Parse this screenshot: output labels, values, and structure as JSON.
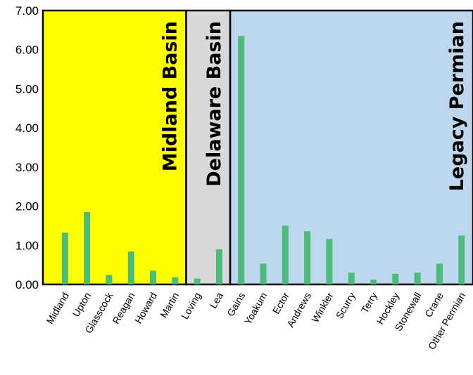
{
  "chart_data": {
    "type": "bar",
    "title": "",
    "xlabel": "",
    "ylabel": "",
    "ylim": [
      0,
      7
    ],
    "yticks": [
      "0.00",
      "1.00",
      "2.00",
      "3.00",
      "4.00",
      "5.00",
      "6.00",
      "7.00"
    ],
    "bar_color": "#4dbb7a",
    "categories": [
      "Midland",
      "Upton",
      "Glasscock",
      "Reagan",
      "Howard",
      "Martin",
      "Loving",
      "Lea",
      "Gains",
      "Yoakum",
      "Ector",
      "Andrews",
      "Winkler",
      "Scurry",
      "Terry",
      "Hockley",
      "Stonewall",
      "Crane",
      "Other Permian"
    ],
    "values": [
      1.32,
      1.85,
      0.24,
      0.84,
      0.35,
      0.18,
      0.15,
      0.9,
      6.35,
      0.53,
      1.5,
      1.36,
      1.16,
      0.3,
      0.12,
      0.27,
      0.3,
      0.53,
      1.25
    ],
    "regions": [
      {
        "name": "Midland Basin",
        "color": "#ffff00",
        "from": 0,
        "to": 5
      },
      {
        "name": "Delaware Basin",
        "color": "#d9d9d9",
        "from": 6,
        "to": 7
      },
      {
        "name": "Legacy Permian",
        "color": "#bdd7ee",
        "from": 8,
        "to": 18
      }
    ]
  }
}
